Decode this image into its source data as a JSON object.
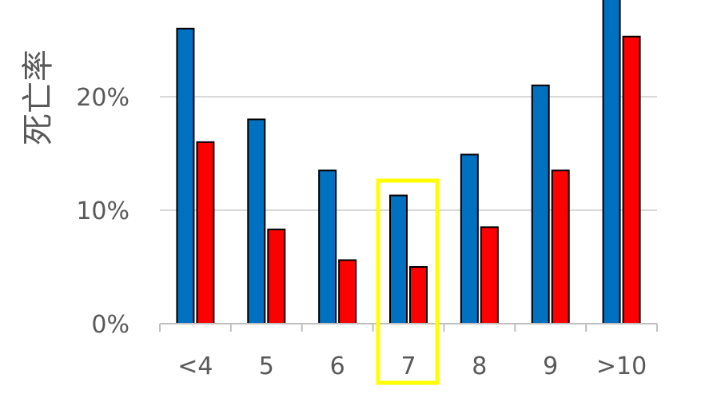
{
  "chart_data": {
    "type": "bar",
    "ylabel": "死亡率",
    "xlabel": "",
    "categories": [
      "<4",
      "5",
      "6",
      "7",
      "8",
      "9",
      ">10"
    ],
    "series": [
      {
        "values": [
          0.26,
          0.18,
          0.135,
          0.113,
          0.149,
          0.21,
          0.295
        ],
        "color": "#0070c0"
      },
      {
        "values": [
          0.16,
          0.083,
          0.056,
          0.05,
          0.085,
          0.135,
          0.253
        ],
        "color": "#ff0000"
      }
    ],
    "ylim": [
      0,
      0.29
    ],
    "yticks": [
      {
        "value": 0,
        "label": "0%"
      },
      {
        "value": 0.1,
        "label": "10%"
      },
      {
        "value": 0.2,
        "label": "20%"
      }
    ],
    "gridlines": true,
    "highlight": {
      "category": "7",
      "color": "#ffff00"
    }
  }
}
